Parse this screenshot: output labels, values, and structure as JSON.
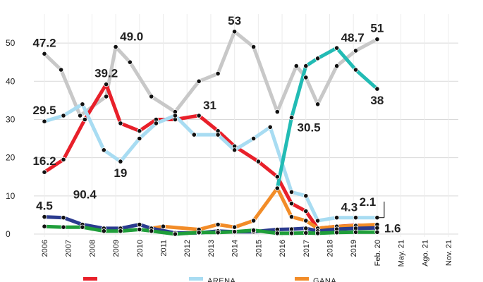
{
  "chart_data": {
    "type": "line",
    "categories": [
      "2006",
      "2007",
      "2008",
      "2009",
      "2010",
      "2011",
      "2012",
      "2013",
      "2014",
      "2015",
      "2016",
      "2017",
      "2018",
      "2019",
      "Feb. 20",
      "May. 21",
      "Ago. 21",
      "Nov. 21"
    ],
    "ylim": [
      0,
      55
    ],
    "yticks": [
      "0",
      "10",
      "20",
      "30",
      "40",
      "50"
    ],
    "grid": true,
    "legend_position": "bottom",
    "series": [
      {
        "color": "#c8c8c8",
        "points": [
          [
            0,
            47.2
          ],
          [
            0.7,
            43
          ],
          [
            1.5,
            31
          ],
          [
            2.6,
            36
          ],
          [
            3,
            49
          ],
          [
            3.6,
            45
          ],
          [
            4.5,
            36
          ],
          [
            5.5,
            32
          ],
          [
            6.5,
            40
          ],
          [
            7.3,
            42
          ],
          [
            8,
            53
          ],
          [
            8.8,
            49
          ],
          [
            9.8,
            32
          ],
          [
            10.6,
            44
          ],
          [
            11,
            41
          ],
          [
            11.5,
            34
          ],
          [
            12.3,
            44
          ],
          [
            13.1,
            48
          ],
          [
            14,
            51
          ]
        ]
      },
      {
        "color": "#e8202a",
        "points": [
          [
            0,
            16.2
          ],
          [
            0.8,
            19.5
          ],
          [
            1.7,
            30
          ],
          [
            2.6,
            39.2
          ],
          [
            3.2,
            29
          ],
          [
            4,
            27
          ],
          [
            4.7,
            30
          ],
          [
            5.5,
            30
          ],
          [
            6.5,
            31
          ],
          [
            7.3,
            27
          ],
          [
            8,
            23
          ],
          [
            9,
            19
          ],
          [
            9.8,
            15
          ],
          [
            10.4,
            8
          ],
          [
            11,
            6
          ],
          [
            11.5,
            1.5
          ],
          [
            12.3,
            2
          ],
          [
            13.1,
            2.3
          ],
          [
            14,
            2.1
          ]
        ]
      },
      {
        "color": "#a8dcf2",
        "points": [
          [
            0,
            29.5
          ],
          [
            0.8,
            31
          ],
          [
            1.6,
            34
          ],
          [
            2.5,
            22
          ],
          [
            3.2,
            19
          ],
          [
            4,
            25
          ],
          [
            4.7,
            29
          ],
          [
            5.5,
            31
          ],
          [
            6.3,
            26
          ],
          [
            7.3,
            26
          ],
          [
            8,
            22
          ],
          [
            8.8,
            25
          ],
          [
            9.5,
            28
          ],
          [
            10.4,
            11
          ],
          [
            11,
            10
          ],
          [
            11.5,
            3.5
          ],
          [
            12.3,
            4.3
          ],
          [
            13.1,
            4.3
          ],
          [
            14,
            4.3
          ]
        ]
      },
      {
        "color": "#f28c28",
        "points": [
          [
            4.5,
            1.5
          ],
          [
            5,
            2
          ],
          [
            6.5,
            1.2
          ],
          [
            7.3,
            2.5
          ],
          [
            8,
            1.8
          ],
          [
            8.8,
            3.5
          ],
          [
            9.8,
            12
          ],
          [
            10.4,
            4.5
          ],
          [
            11,
            3.5
          ],
          [
            11.5,
            1.5
          ],
          [
            12.3,
            2
          ],
          [
            13.1,
            2.2
          ],
          [
            14,
            2.5
          ]
        ]
      },
      {
        "color": "#22bbb4",
        "points": [
          [
            9.8,
            12
          ],
          [
            10.4,
            30.5
          ],
          [
            11,
            44
          ],
          [
            11.5,
            46
          ],
          [
            12.3,
            48.7
          ],
          [
            13.1,
            43
          ],
          [
            14,
            38
          ]
        ]
      },
      {
        "color": "#2b3b8f",
        "points": [
          [
            0,
            4.5
          ],
          [
            0.8,
            4.3
          ],
          [
            1.6,
            2.5
          ],
          [
            2.5,
            1.5
          ],
          [
            3.2,
            1.5
          ],
          [
            4,
            2.5
          ],
          [
            4.5,
            1.5
          ],
          [
            5.5,
            0.3
          ],
          [
            6.5,
            0.3
          ],
          [
            7.3,
            0.8
          ],
          [
            8,
            0.6
          ],
          [
            8.8,
            0.6
          ],
          [
            9.8,
            1.2
          ],
          [
            10.4,
            1.3
          ],
          [
            11,
            1.5
          ],
          [
            11.5,
            0.8
          ],
          [
            12.3,
            1.3
          ],
          [
            13.1,
            1.5
          ],
          [
            14,
            1.6
          ]
        ]
      },
      {
        "color": "#1f9e3a",
        "points": [
          [
            0,
            2
          ],
          [
            0.8,
            1.8
          ],
          [
            1.6,
            1.8
          ],
          [
            2.5,
            0.8
          ],
          [
            3.2,
            0.8
          ],
          [
            4,
            1.2
          ],
          [
            4.5,
            0.8
          ],
          [
            5.5,
            0
          ],
          [
            6.5,
            0.4
          ],
          [
            7.3,
            0.4
          ],
          [
            8,
            0.6
          ],
          [
            8.8,
            1
          ],
          [
            9.8,
            0.2
          ],
          [
            10.4,
            0.2
          ],
          [
            11,
            0.3
          ],
          [
            11.5,
            0.2
          ],
          [
            12.3,
            0.4
          ],
          [
            13.1,
            0.5
          ],
          [
            14,
            0.5
          ]
        ]
      }
    ],
    "data_labels": [
      {
        "text": "47.2",
        "at": [
          0,
          47.2
        ],
        "pos": "above"
      },
      {
        "text": "29.5",
        "at": [
          0,
          29.5
        ],
        "pos": "above"
      },
      {
        "text": "16.2",
        "at": [
          0,
          16.2
        ],
        "pos": "above"
      },
      {
        "text": "4.5",
        "at": [
          0,
          4.5
        ],
        "pos": "above"
      },
      {
        "text": "90.4",
        "at": [
          1.7,
          10.4
        ],
        "pos": "center"
      },
      {
        "text": "39.2",
        "at": [
          2.6,
          39.2
        ],
        "pos": "above"
      },
      {
        "text": "49.0",
        "at": [
          3,
          49
        ],
        "pos": "above-right"
      },
      {
        "text": "19",
        "at": [
          3.2,
          19
        ],
        "pos": "below"
      },
      {
        "text": "31",
        "at": [
          6.5,
          31
        ],
        "pos": "above-right"
      },
      {
        "text": "53",
        "at": [
          8,
          53
        ],
        "pos": "above"
      },
      {
        "text": "30.5",
        "at": [
          10.4,
          30.5
        ],
        "pos": "below-right"
      },
      {
        "text": "48.7",
        "at": [
          12.3,
          48.7
        ],
        "pos": "above-right"
      },
      {
        "text": "51",
        "at": [
          14,
          51
        ],
        "pos": "above"
      },
      {
        "text": "38",
        "at": [
          14,
          38
        ],
        "pos": "below"
      },
      {
        "text": "4.3",
        "at": [
          12.3,
          4.3
        ],
        "pos": "above-right"
      },
      {
        "text": "2.1",
        "at": [
          13.6,
          8.5
        ],
        "pos": "center"
      },
      {
        "text": "1.6",
        "at": [
          14,
          1.6
        ],
        "pos": "right"
      }
    ],
    "legend": [
      {
        "label": "",
        "color": "#e8202a"
      },
      {
        "label": "ARENA",
        "color": "#a8dcf2"
      },
      {
        "label": "GANA",
        "color": "#f28c28"
      }
    ]
  }
}
